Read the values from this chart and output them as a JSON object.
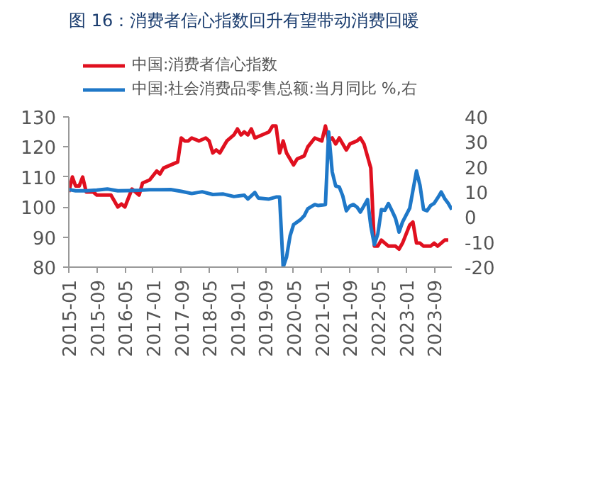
{
  "chart_data": {
    "type": "line",
    "title": "图 16：消费者信心指数回升有望带动消费回暖",
    "xlim": [
      "2015-01",
      "2024-02"
    ],
    "xticks": [
      "2015-01",
      "2015-09",
      "2016-05",
      "2017-01",
      "2017-09",
      "2018-05",
      "2019-01",
      "2019-09",
      "2020-05",
      "2021-01",
      "2021-09",
      "2022-05",
      "2023-01",
      "2023-09"
    ],
    "ylim": [
      80,
      130
    ],
    "yticks": [
      80,
      90,
      100,
      110,
      120,
      130
    ],
    "y2lim": [
      -20,
      40
    ],
    "y2ticks": [
      -20,
      -10,
      0,
      10,
      20,
      30,
      40
    ],
    "grid": false,
    "legend": "top",
    "series": [
      {
        "name": "中国:消费者信心指数",
        "color": "#e0101f",
        "x": [
          "2015-01",
          "2015-02",
          "2015-03",
          "2015-04",
          "2015-05",
          "2015-06",
          "2015-08",
          "2015-09",
          "2015-12",
          "2016-01",
          "2016-03",
          "2016-04",
          "2016-05",
          "2016-07",
          "2016-08",
          "2016-09",
          "2016-10",
          "2016-12",
          "2017-02",
          "2017-03",
          "2017-04",
          "2017-06",
          "2017-08",
          "2017-09",
          "2017-10",
          "2017-11",
          "2017-12",
          "2018-02",
          "2018-04",
          "2018-05",
          "2018-06",
          "2018-07",
          "2018-08",
          "2018-10",
          "2018-12",
          "2019-01",
          "2019-02",
          "2019-03",
          "2019-04",
          "2019-05",
          "2019-06",
          "2019-08",
          "2019-10",
          "2019-11",
          "2019-12",
          "2020-01",
          "2020-02",
          "2020-03",
          "2020-05",
          "2020-06",
          "2020-08",
          "2020-09",
          "2020-11",
          "2021-01",
          "2021-02",
          "2021-03",
          "2021-04",
          "2021-05",
          "2021-06",
          "2021-08",
          "2021-09",
          "2021-11",
          "2021-12",
          "2022-01",
          "2022-03",
          "2022-04",
          "2022-05",
          "2022-06",
          "2022-07",
          "2022-08",
          "2022-10",
          "2022-11",
          "2022-12",
          "2023-02",
          "2023-03",
          "2023-04",
          "2023-05",
          "2023-06",
          "2023-08",
          "2023-09",
          "2023-10",
          "2023-11",
          "2023-12",
          "2024-01"
        ],
        "values": [
          105,
          110,
          107,
          107,
          110,
          105,
          105,
          104,
          104,
          104,
          100,
          101,
          100,
          106,
          105,
          104,
          108,
          109,
          112,
          111,
          113,
          114,
          115,
          123,
          122,
          122,
          123,
          122,
          123,
          122,
          118,
          119,
          118,
          122,
          124,
          126,
          124,
          125,
          124,
          126,
          123,
          124,
          125,
          127,
          127,
          118,
          122,
          118,
          114,
          116,
          117,
          120,
          123,
          122,
          127,
          122,
          123,
          121,
          123,
          119,
          121,
          122,
          123,
          121,
          113,
          87,
          87,
          89,
          88,
          87,
          87,
          86,
          88,
          94,
          95,
          88,
          88,
          87,
          87,
          88,
          87,
          88,
          89,
          89
        ]
      },
      {
        "name": "中国:社会消费品零售总额:当月同比 %,右",
        "color": "#1f78c8",
        "axis": "y2",
        "x": [
          "2015-01",
          "2015-03",
          "2015-06",
          "2015-09",
          "2015-12",
          "2016-03",
          "2016-06",
          "2016-09",
          "2016-12",
          "2017-03",
          "2017-06",
          "2017-09",
          "2017-12",
          "2018-03",
          "2018-06",
          "2018-09",
          "2018-12",
          "2019-03",
          "2019-04",
          "2019-06",
          "2019-07",
          "2019-10",
          "2019-12",
          "2020-01",
          "2020-02",
          "2020-03",
          "2020-04",
          "2020-05",
          "2020-07",
          "2020-08",
          "2020-09",
          "2020-11",
          "2020-12",
          "2021-02",
          "2021-03",
          "2021-04",
          "2021-05",
          "2021-06",
          "2021-07",
          "2021-08",
          "2021-09",
          "2021-10",
          "2021-11",
          "2021-12",
          "2022-02",
          "2022-03",
          "2022-04",
          "2022-05",
          "2022-06",
          "2022-07",
          "2022-08",
          "2022-09",
          "2022-10",
          "2022-11",
          "2022-12",
          "2023-02",
          "2023-03",
          "2023-04",
          "2023-05",
          "2023-06",
          "2023-07",
          "2023-08",
          "2023-09",
          "2023-10",
          "2023-11",
          "2023-12",
          "2024-01",
          "2024-02"
        ],
        "values": [
          11,
          10.5,
          10.5,
          10.8,
          11.2,
          10.5,
          10.6,
          10.7,
          10.9,
          10.9,
          11,
          10.3,
          9.4,
          10.1,
          9,
          9.2,
          8.2,
          8.7,
          7.2,
          9.8,
          7.6,
          7.2,
          8,
          8,
          -20,
          -16,
          -7.5,
          -3,
          -1,
          0.5,
          3.3,
          5,
          4.6,
          5,
          34,
          18,
          12.4,
          12,
          8.5,
          2.5,
          4.4,
          5,
          4,
          2,
          7,
          -3.5,
          -11,
          -6.7,
          3,
          2.7,
          5.4,
          2.5,
          -0.5,
          -6,
          -2,
          3.5,
          10.6,
          18.4,
          12.7,
          3,
          2.5,
          4.6,
          5.5,
          7.6,
          10,
          7.4,
          5.5,
          3
        ]
      }
    ]
  }
}
